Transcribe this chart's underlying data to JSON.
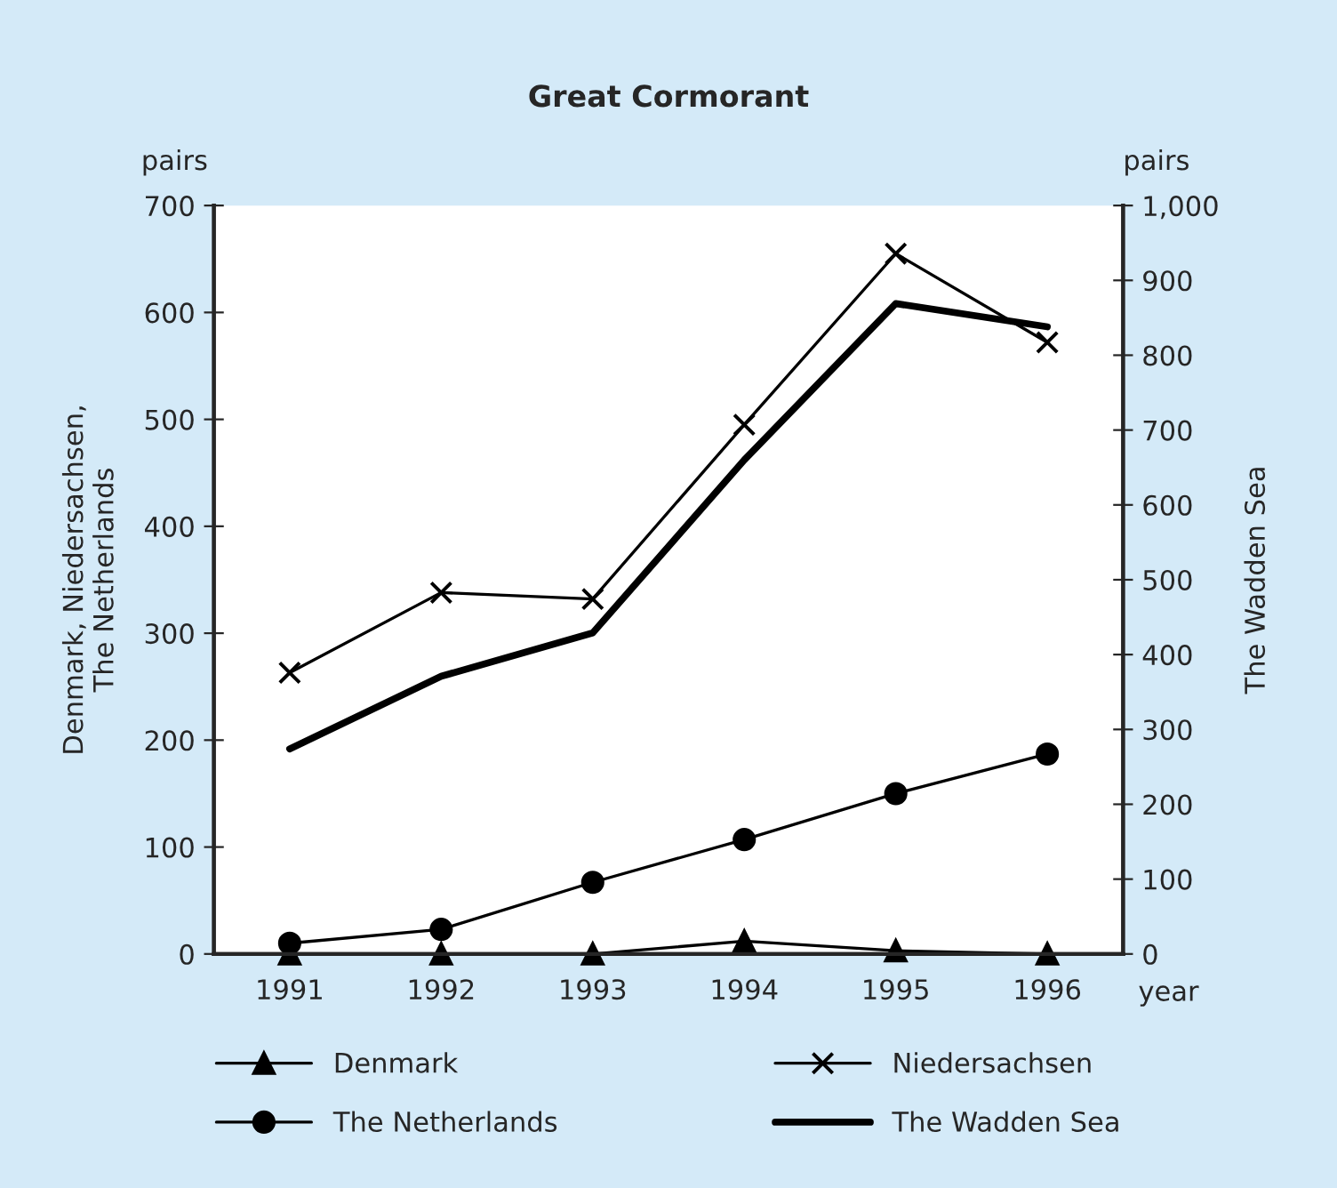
{
  "chart_data": {
    "type": "line",
    "title": "Great Cormorant",
    "xlabel": "year",
    "ylabel": "Denmark, Niedersachsen,\nThe Netherlands",
    "y2label": "The Wadden Sea",
    "annotations": [
      "pairs",
      "pairs"
    ],
    "categories": [
      "1991",
      "1992",
      "1993",
      "1994",
      "1995",
      "1996"
    ],
    "series": [
      {
        "name": "Denmark",
        "color": "#000000",
        "marker": "triangle",
        "values": [
          0,
          0,
          0,
          12,
          3,
          0
        ]
      },
      {
        "name": "Niedersachsen",
        "color": "#000000",
        "marker": "cross",
        "values": [
          263,
          338,
          332,
          495,
          655,
          572
        ]
      },
      {
        "name": "The Netherlands",
        "color": "#000000",
        "marker": "circle",
        "values": [
          10,
          23,
          67,
          107,
          150,
          187
        ]
      },
      {
        "name": "The Wadden Sea",
        "color": "#000000",
        "marker": "none",
        "axis": "y2",
        "values": [
          274,
          371,
          429,
          660,
          869,
          838
        ]
      }
    ],
    "ylim": [
      0,
      700
    ],
    "yticks": [
      0,
      100,
      200,
      300,
      400,
      500,
      600,
      700
    ],
    "y2lim": [
      0,
      1000
    ],
    "y2ticks": [
      0,
      100,
      200,
      300,
      400,
      500,
      600,
      700,
      800,
      900,
      {
        "value": 1000,
        "label": "1,000"
      }
    ],
    "grid": false,
    "legend": "bottom"
  }
}
